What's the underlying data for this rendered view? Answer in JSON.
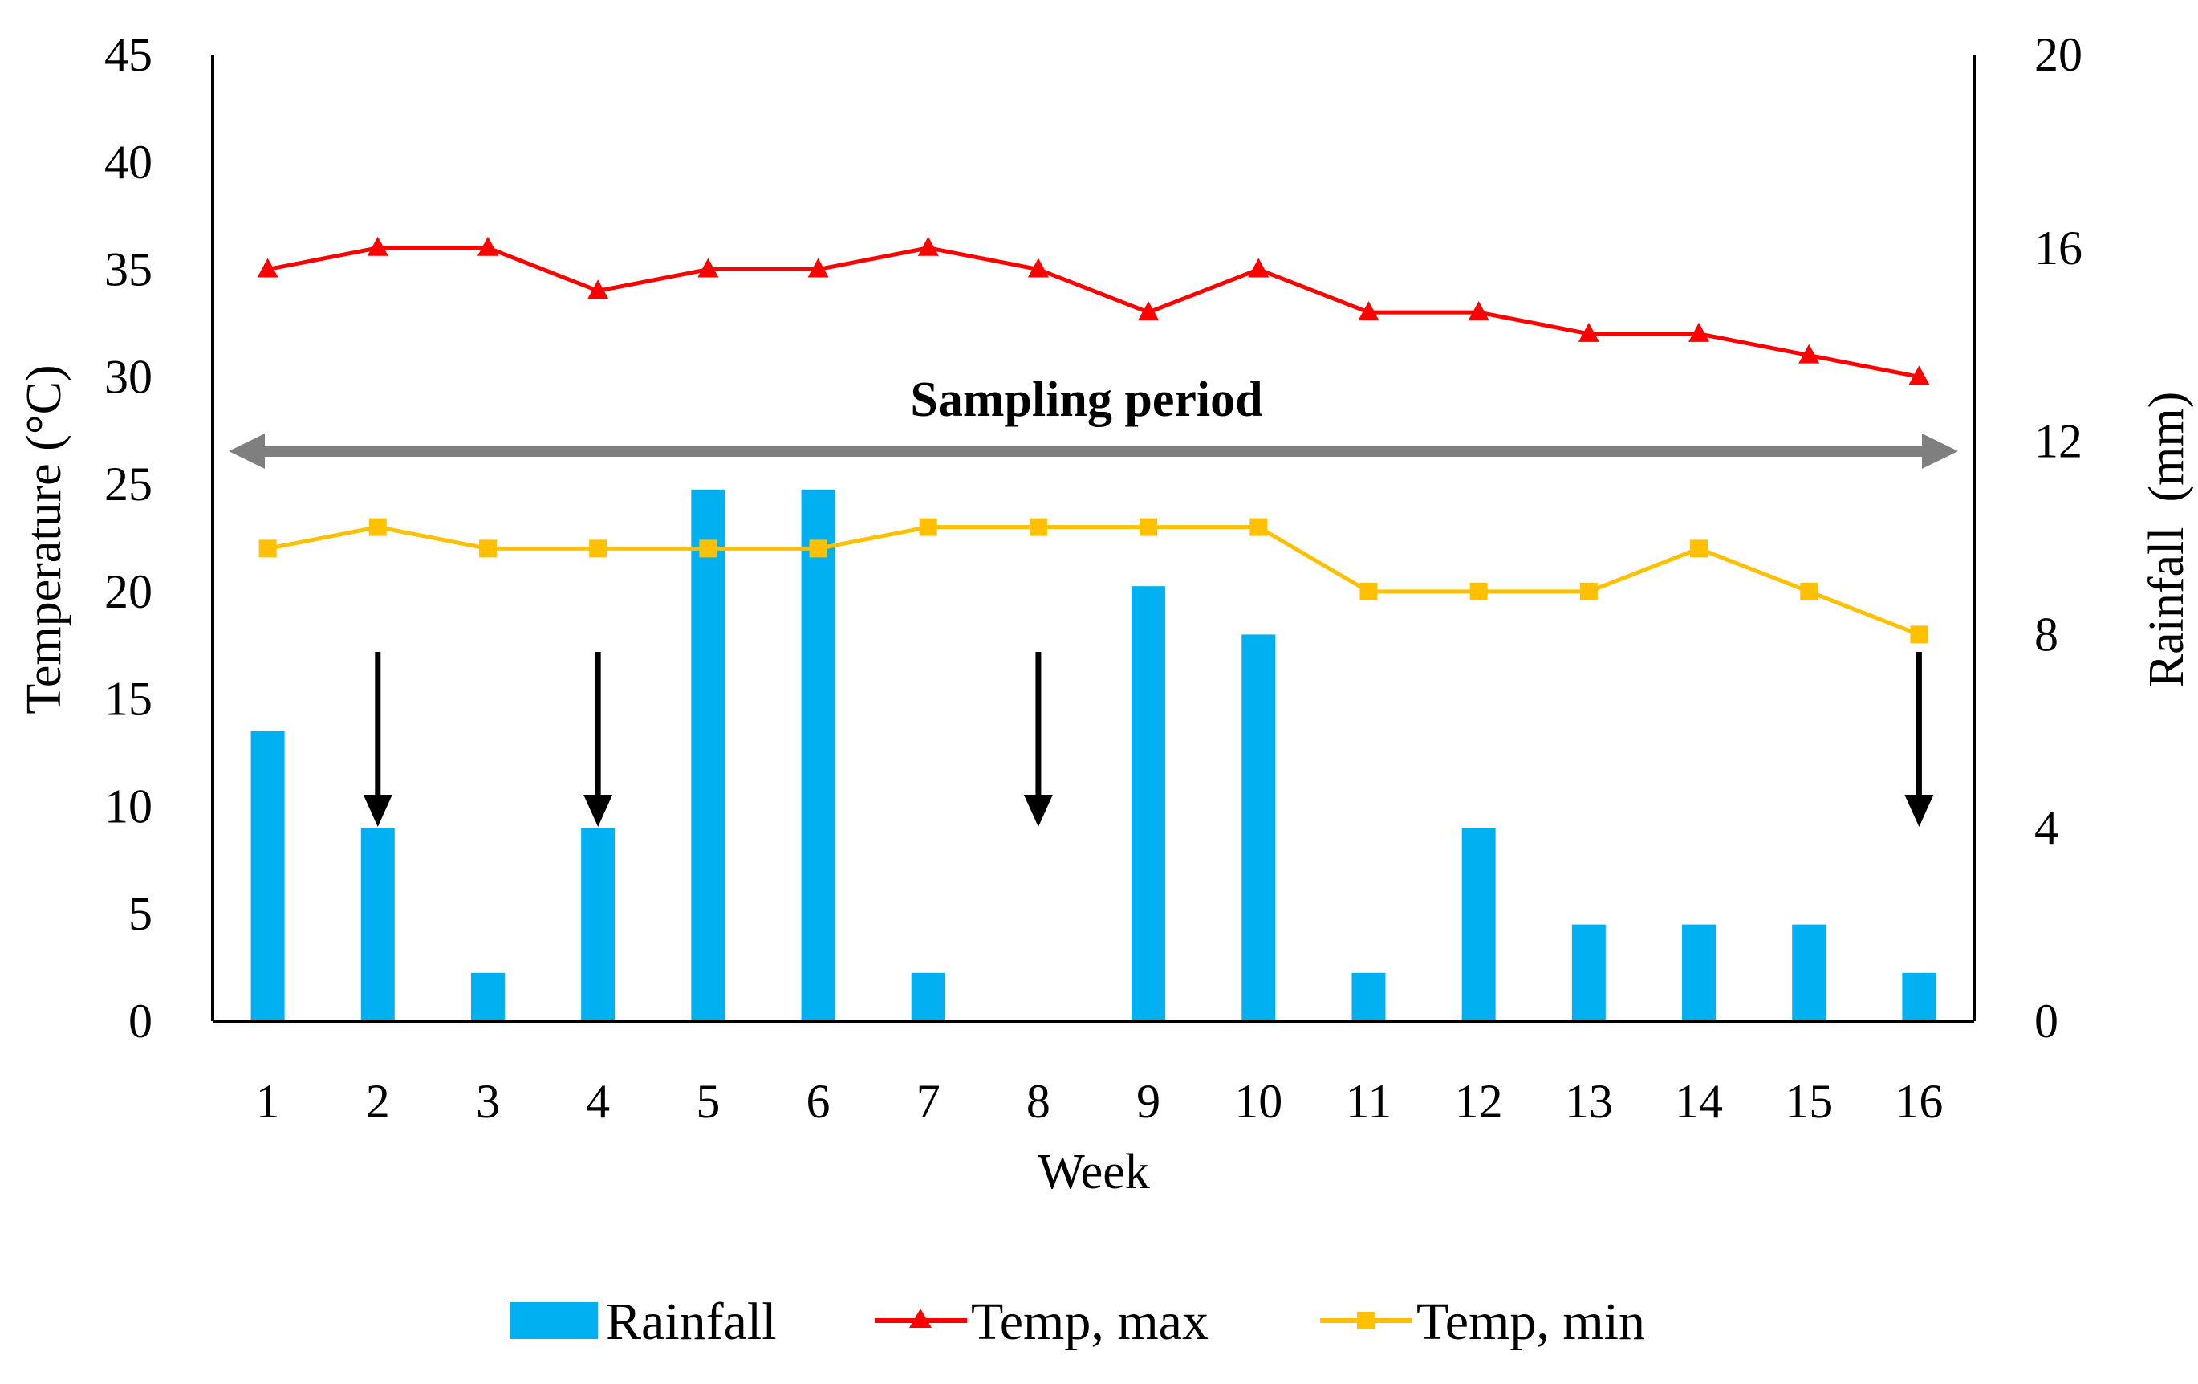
{
  "chart_data": {
    "type": "bar+line",
    "categories": [
      "1",
      "2",
      "3",
      "4",
      "5",
      "6",
      "7",
      "8",
      "9",
      "10",
      "11",
      "12",
      "13",
      "14",
      "15",
      "16"
    ],
    "xlabel": "Week",
    "ylabel_left": "Temperature (°C)",
    "ylabel_right": "Rainfall  (mm)",
    "ylim_left": [
      0,
      45
    ],
    "ylim_right": [
      0,
      20
    ],
    "yticks_left": [
      "0",
      "5",
      "10",
      "15",
      "20",
      "25",
      "30",
      "35",
      "40",
      "45"
    ],
    "yticks_right": [
      "0",
      "4",
      "8",
      "12",
      "16",
      "20"
    ],
    "grid": false,
    "legend_position": "bottom",
    "series": [
      {
        "name": "Rainfall",
        "type": "bar",
        "axis": "right",
        "color": "#00b0f0",
        "values": [
          6,
          4,
          1,
          4,
          11,
          11,
          1,
          0,
          9,
          8,
          1,
          4,
          2,
          2,
          2,
          1
        ]
      },
      {
        "name": "Temp, max",
        "type": "line",
        "axis": "left",
        "marker": "triangle",
        "color": "#ff0000",
        "values": [
          35,
          36,
          36,
          34,
          35,
          35,
          36,
          35,
          33,
          35,
          33,
          33,
          32,
          32,
          31,
          30
        ]
      },
      {
        "name": "Temp, min",
        "type": "line",
        "axis": "left",
        "marker": "square",
        "color": "#ffc000",
        "values": [
          22,
          23,
          22,
          22,
          22,
          22,
          23,
          23,
          23,
          23,
          20,
          20,
          20,
          22,
          20,
          18
        ]
      }
    ],
    "annotations": {
      "sampling_period_label": "Sampling period",
      "sampling_period_weeks": [
        1,
        16
      ],
      "sampling_weeks": [
        2,
        4,
        8,
        16
      ]
    },
    "colors": {
      "axis": "#000000",
      "period_arrow": "#7f7f7f",
      "sample_arrow": "#000000"
    }
  }
}
